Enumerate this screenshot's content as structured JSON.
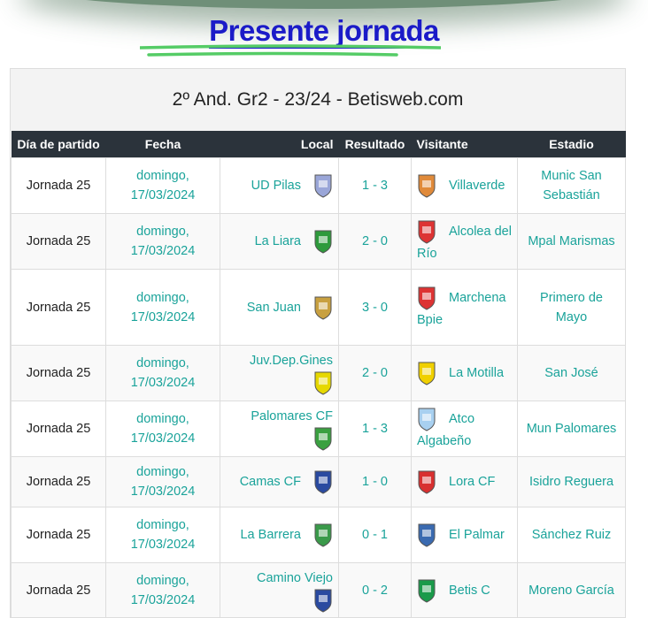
{
  "heading": "Presente jornada",
  "table": {
    "caption": "2º And. Gr2 - 23/24 - Betisweb.com",
    "columns": [
      "Día de partido",
      "Fecha",
      "Local",
      "Resultado",
      "Visitante",
      "Estadio"
    ],
    "rows": [
      {
        "jornada": "Jornada 25",
        "fecha_1": "domingo,",
        "fecha_2": "17/03/2024",
        "local": "UD Pilas",
        "local_crest": "#9aa6d8",
        "resultado": "1 - 3",
        "visitante": "Villaverde",
        "visitante_crest": "#e08a3a",
        "estadio": "Munic San Sebastián"
      },
      {
        "jornada": "Jornada 25",
        "fecha_1": "domingo,",
        "fecha_2": "17/03/2024",
        "local": "La Liara",
        "local_crest": "#2e9a3c",
        "resultado": "2 - 0",
        "visitante": "Alcolea del Río",
        "visitante_crest": "#d33",
        "estadio": "Mpal Marismas"
      },
      {
        "jornada": "Jornada 25",
        "fecha_1": "domingo,",
        "fecha_2": "17/03/2024",
        "local": "San Juan",
        "local_crest": "#c8a040",
        "resultado": "3 - 0",
        "visitante": "Marchena Bpie",
        "visitante_crest": "#d33",
        "estadio": "Primero de Mayo"
      },
      {
        "jornada": "Jornada 25",
        "fecha_1": "domingo,",
        "fecha_2": "17/03/2024",
        "local": "Juv.Dep.Gines",
        "local_crest": "#e6d800",
        "resultado": "2 - 0",
        "visitante": "La Motilla",
        "visitante_crest": "#f0d000",
        "estadio": "San José"
      },
      {
        "jornada": "Jornada 25",
        "fecha_1": "domingo,",
        "fecha_2": "17/03/2024",
        "local": "Palomares CF",
        "local_crest": "#3aa040",
        "resultado": "1 - 3",
        "visitante": "Atco Algabeño",
        "visitante_crest": "#a8d0f0",
        "estadio": "Mun Palomares"
      },
      {
        "jornada": "Jornada 25",
        "fecha_1": "domingo,",
        "fecha_2": "17/03/2024",
        "local": "Camas CF",
        "local_crest": "#2a4aa0",
        "resultado": "1 - 0",
        "visitante": "Lora CF",
        "visitante_crest": "#d83030",
        "estadio": "Isidro Reguera"
      },
      {
        "jornada": "Jornada 25",
        "fecha_1": "domingo,",
        "fecha_2": "17/03/2024",
        "local": "La Barrera",
        "local_crest": "#3a9a4a",
        "resultado": "0 - 1",
        "visitante": "El Palmar",
        "visitante_crest": "#3a6ab0",
        "estadio": "Sánchez Ruiz"
      },
      {
        "jornada": "Jornada 25",
        "fecha_1": "domingo,",
        "fecha_2": "17/03/2024",
        "local": "Camino Viejo",
        "local_crest": "#2a4aa0",
        "resultado": "0 - 2",
        "visitante": "Betis C",
        "visitante_crest": "#1a9a4a",
        "estadio": "Moreno García"
      }
    ]
  }
}
